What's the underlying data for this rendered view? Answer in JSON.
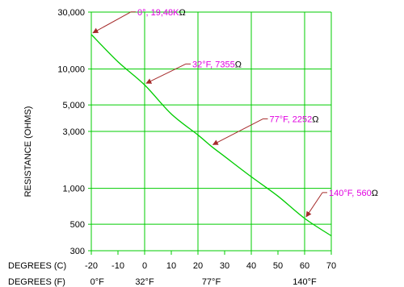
{
  "chart_data": {
    "type": "line",
    "ylabel": "RESISTANCE (OHMS)",
    "yscale": "log",
    "ylim": [
      300,
      30000
    ],
    "xlim": [
      -20,
      70
    ],
    "grid": true,
    "colors": {
      "grid": "#00cc00",
      "curve": "#00cc00",
      "annotation": "#e000e0",
      "arrow": "#a52a2a"
    },
    "y_ticks": [
      {
        "value": 30000,
        "label": "30,000"
      },
      {
        "value": 10000,
        "label": "10,000"
      },
      {
        "value": 5000,
        "label": "5,000"
      },
      {
        "value": 3000,
        "label": "3,000"
      },
      {
        "value": 1000,
        "label": "1,000"
      },
      {
        "value": 500,
        "label": "500"
      },
      {
        "value": 300,
        "label": "300"
      }
    ],
    "x_axis_c": {
      "label": "DEGREES (C)",
      "ticks": [
        {
          "value": -20,
          "label": "-20"
        },
        {
          "value": -10,
          "label": "-10"
        },
        {
          "value": 0,
          "label": "0"
        },
        {
          "value": 10,
          "label": "10"
        },
        {
          "value": 20,
          "label": "20"
        },
        {
          "value": 30,
          "label": "30"
        },
        {
          "value": 40,
          "label": "40"
        },
        {
          "value": 50,
          "label": "50"
        },
        {
          "value": 60,
          "label": "60"
        },
        {
          "value": 70,
          "label": "70"
        }
      ]
    },
    "x_axis_f": {
      "label": "DEGREES (F)",
      "ticks": [
        {
          "value": -17.8,
          "label": "0°F"
        },
        {
          "value": 0,
          "label": "32°F"
        },
        {
          "value": 25,
          "label": "77°F"
        },
        {
          "value": 60,
          "label": "140°F"
        }
      ]
    },
    "grid_x": [
      -20,
      0,
      20,
      40,
      60,
      70
    ],
    "grid_y": [
      30000,
      10000,
      5000,
      3000,
      1000,
      500,
      300
    ],
    "series": [
      {
        "points": [
          {
            "x": -20,
            "y": 19480
          },
          {
            "x": -10,
            "y": 11500
          },
          {
            "x": 0,
            "y": 7355
          },
          {
            "x": 10,
            "y": 4200
          },
          {
            "x": 20,
            "y": 2800
          },
          {
            "x": 25,
            "y": 2252
          },
          {
            "x": 30,
            "y": 1850
          },
          {
            "x": 40,
            "y": 1250
          },
          {
            "x": 50,
            "y": 860
          },
          {
            "x": 60,
            "y": 560
          },
          {
            "x": 70,
            "y": 400
          }
        ]
      }
    ],
    "annotations": [
      {
        "text": "0°,  19,48K",
        "unit": "Ω",
        "point_x": -20,
        "point_y": 19480
      },
      {
        "text": "32°F,  7355",
        "unit": "Ω",
        "point_x": 0,
        "point_y": 7355
      },
      {
        "text": "77°F,  2252",
        "unit": "Ω",
        "point_x": 25,
        "point_y": 2252
      },
      {
        "text": "140°F,  560",
        "unit": "Ω",
        "point_x": 60,
        "point_y": 560
      }
    ]
  }
}
